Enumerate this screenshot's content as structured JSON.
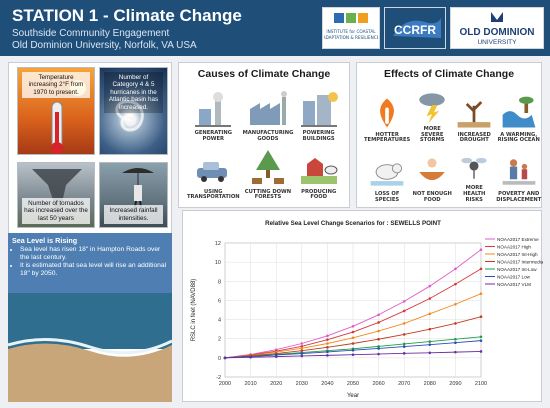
{
  "header": {
    "title": "STATION 1 - Climate Change",
    "subtitle1": "Southside Community Engagement",
    "subtitle2": "Old Dominion University, Norfolk, VA USA",
    "logos": [
      "INSTITUTE for COASTAL ADAPTATION & RESILIENCE",
      "CCRFR",
      "OLD DOMINION UNIVERSITY"
    ]
  },
  "tiles": {
    "temp": "Temperature increasing 2°F from 1970 to present.",
    "hurricane": "Number of Category 4 & 5 hurricanes in the Atlantic basin has increased.",
    "tornado": "Number of tornados has increased over the last 50 years",
    "rain": "Increased rainfall intensities."
  },
  "sea_level": {
    "heading": "Sea Level is Rising",
    "bullet1": "Sea level has risen 18\" in Hampton Roads over the last century.",
    "bullet2": "It is estimated that sea level will rise an additional 18\" by 2050."
  },
  "causes": {
    "title": "Causes of Climate Change",
    "items": [
      "GENERATING POWER",
      "MANUFACTURING GOODS",
      "POWERING BUILDINGS",
      "USING TRANSPORTATION",
      "CUTTING DOWN FORESTS",
      "PRODUCING FOOD"
    ]
  },
  "effects": {
    "title": "Effects of Climate Change",
    "items": [
      "HOTTER TEMPERATURES",
      "MORE SEVERE STORMS",
      "INCREASED DROUGHT",
      "A WARMING, RISING OCEAN",
      "LOSS OF SPECIES",
      "NOT ENOUGH FOOD",
      "MORE HEALTH RISKS",
      "POVERTY AND DISPLACEMENT"
    ]
  },
  "chart_data": {
    "type": "line",
    "title": "Relative Sea Level Change Scenarios for : SEWELLS POINT",
    "xlabel": "Year",
    "ylabel": "RSLC in feet (NAVD88)",
    "x": [
      2000,
      2010,
      2020,
      2030,
      2040,
      2050,
      2060,
      2070,
      2080,
      2090,
      2100
    ],
    "xlim": [
      2000,
      2100
    ],
    "ylim": [
      -2,
      12
    ],
    "yticks": [
      -2,
      0,
      2,
      4,
      6,
      8,
      10,
      12
    ],
    "grid": true,
    "legend": "top-right",
    "series": [
      {
        "name": "NOAA2017 Extreme",
        "color": "#e05cc9",
        "values": [
          0,
          0.35,
          0.85,
          1.5,
          2.3,
          3.3,
          4.5,
          5.9,
          7.5,
          9.3,
          11.3
        ]
      },
      {
        "name": "NOAA2017 High",
        "color": "#d73a3a",
        "values": [
          0,
          0.3,
          0.7,
          1.2,
          1.9,
          2.7,
          3.7,
          4.9,
          6.2,
          7.7,
          9.3
        ]
      },
      {
        "name": "NOAA2017 Int-High",
        "color": "#f08a1e",
        "values": [
          0,
          0.25,
          0.6,
          1.0,
          1.5,
          2.1,
          2.8,
          3.6,
          4.6,
          5.6,
          6.7
        ]
      },
      {
        "name": "NOAA2017 Intermediate",
        "color": "#c23b22",
        "values": [
          0,
          0.2,
          0.45,
          0.75,
          1.1,
          1.5,
          1.95,
          2.45,
          3.0,
          3.6,
          4.3
        ]
      },
      {
        "name": "NOAA2017 Int-Low",
        "color": "#1f9e4a",
        "values": [
          0,
          0.15,
          0.35,
          0.55,
          0.75,
          0.95,
          1.2,
          1.45,
          1.7,
          1.95,
          2.2
        ]
      },
      {
        "name": "NOAA2017 Low",
        "color": "#2a4fb0",
        "values": [
          0,
          0.13,
          0.3,
          0.45,
          0.62,
          0.8,
          0.98,
          1.18,
          1.38,
          1.58,
          1.8
        ]
      },
      {
        "name": "NOAA2017 VLM",
        "color": "#6a2ea0",
        "values": [
          0,
          0.06,
          0.13,
          0.2,
          0.26,
          0.33,
          0.4,
          0.47,
          0.53,
          0.6,
          0.67
        ]
      }
    ]
  },
  "colors": {
    "header": "#1f4e79",
    "panel_bg": "#ffffff"
  }
}
